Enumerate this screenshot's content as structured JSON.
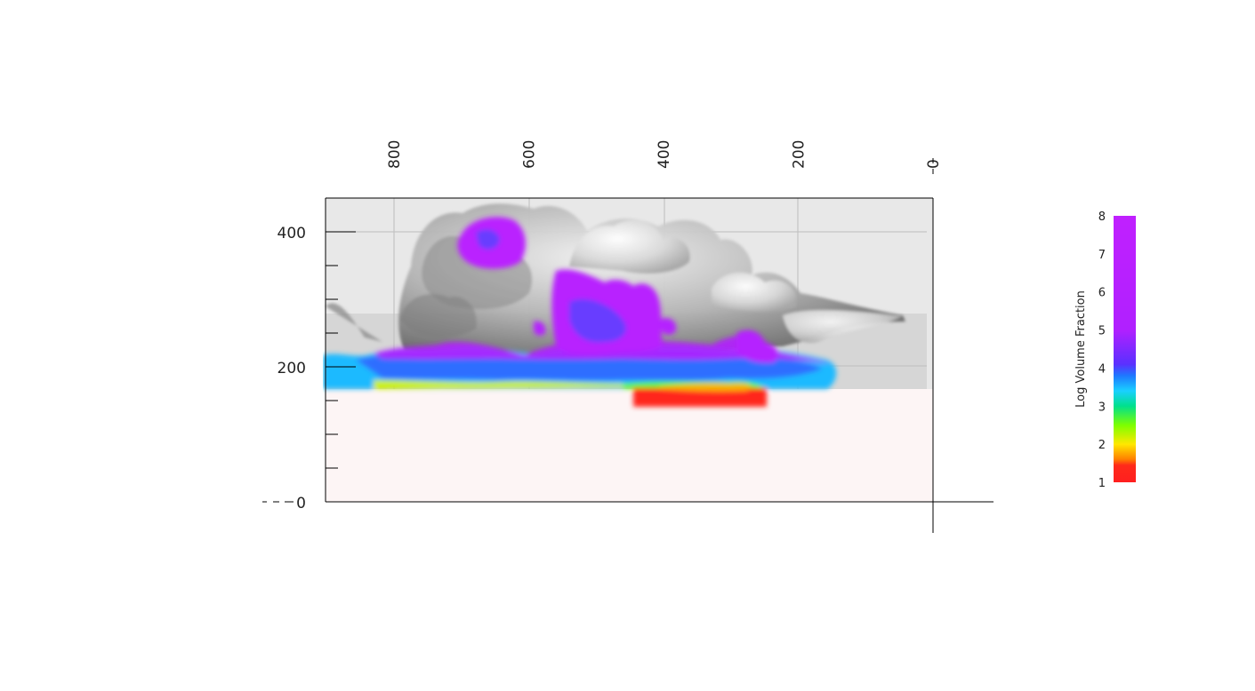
{
  "chart_data": {
    "type": "heatmap",
    "title": "",
    "colorbar": {
      "label": "Log Volume Fraction",
      "range": [
        1,
        8
      ],
      "ticks": [
        "8",
        "7",
        "6",
        "5",
        "4",
        "3",
        "2",
        "1"
      ],
      "stops": [
        {
          "v": 1.0,
          "color": "#ff1f1f"
        },
        {
          "v": 1.45,
          "color": "#ff2a1a"
        },
        {
          "v": 1.6,
          "color": "#ff7f00"
        },
        {
          "v": 2.0,
          "color": "#ffe800"
        },
        {
          "v": 2.5,
          "color": "#7dff00"
        },
        {
          "v": 3.0,
          "color": "#00e08c"
        },
        {
          "v": 3.4,
          "color": "#1ad0ff"
        },
        {
          "v": 3.8,
          "color": "#1e78ff"
        },
        {
          "v": 4.1,
          "color": "#5a30ff"
        },
        {
          "v": 5.0,
          "color": "#b020ff"
        },
        {
          "v": 8.0,
          "color": "#c020ff"
        }
      ]
    },
    "x_axis": {
      "ticks": [
        "800",
        "600",
        "400",
        "200",
        "0"
      ],
      "tick_values": [
        800,
        600,
        400,
        200,
        0
      ],
      "range": [
        0,
        900
      ],
      "reversed": true
    },
    "y_axis": {
      "ticks": [
        "400",
        "200",
        "0"
      ],
      "tick_values": [
        400,
        200,
        0
      ],
      "range": [
        0,
        450
      ]
    },
    "colors": {
      "ground": "#fdf5f5",
      "sky": "#e8e8e8",
      "band": "#d6d6d6",
      "smoke": "#9a9a9a"
    }
  }
}
